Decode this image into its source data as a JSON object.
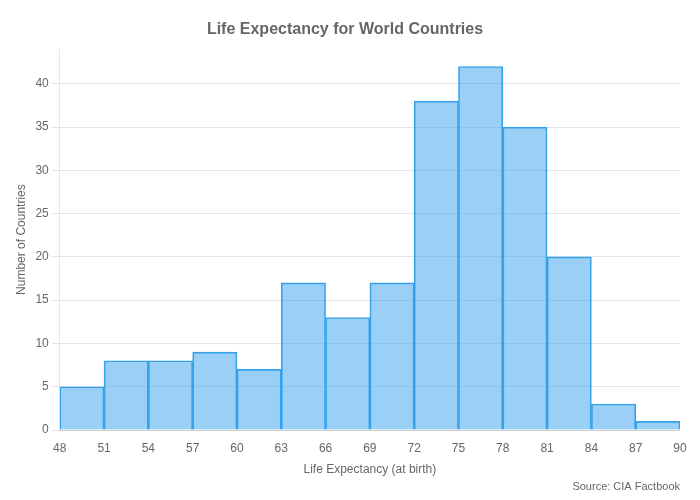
{
  "chart_data": {
    "type": "histogram",
    "title": "Life Expectancy for World Countries",
    "xlabel": "Life Expectancy (at birth)",
    "ylabel": "Number of Countries",
    "annotations": [
      "Source: CIA Factbook"
    ],
    "bins": [
      48,
      51,
      54,
      57,
      60,
      63,
      66,
      69,
      72,
      75,
      78,
      81,
      84,
      87,
      90
    ],
    "values": [
      5,
      8,
      8,
      9,
      7,
      17,
      13,
      17,
      38,
      42,
      35,
      20,
      3,
      1
    ],
    "xlim": [
      48,
      90
    ],
    "xticks": [
      48,
      51,
      54,
      57,
      60,
      63,
      66,
      69,
      72,
      75,
      78,
      81,
      84,
      87,
      90
    ],
    "ylim": [
      0,
      44
    ],
    "yticks": [
      0,
      5,
      10,
      15,
      20,
      25,
      30,
      35,
      40
    ],
    "grid": "y"
  }
}
